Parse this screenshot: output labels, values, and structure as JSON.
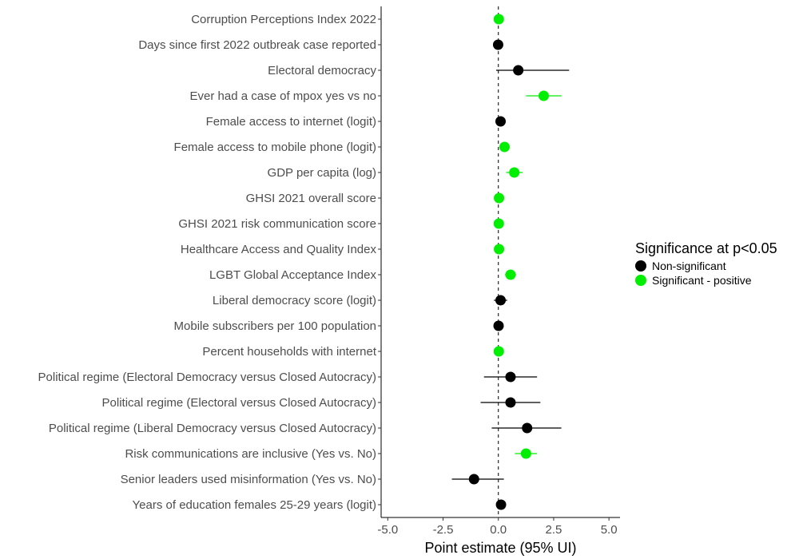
{
  "chart_data": {
    "type": "scatter",
    "subtype": "forest-plot",
    "xlabel": "Point estimate (95% UI)",
    "xlim": [
      -5.3,
      5.5
    ],
    "xticks": [
      -5.0,
      -2.5,
      0.0,
      2.5,
      5.0
    ],
    "xtick_labels": [
      "-5.0",
      "-2.5",
      "0.0",
      "2.5",
      "5.0"
    ],
    "reference_line": {
      "x": 0,
      "style": "dashed"
    },
    "grid": false,
    "legend": {
      "title": "Significance at p<0.05",
      "placement": "right",
      "entries": [
        {
          "label": "Non-significant",
          "color": "#000000"
        },
        {
          "label": "Significant - positive",
          "color": "#00ee00"
        }
      ]
    },
    "points": [
      {
        "label": "Corruption Perceptions Index 2022",
        "estimate": 0.02,
        "lower": 0.0,
        "upper": 0.04,
        "group": "Significant - positive"
      },
      {
        "label": "Days since first 2022 outbreak case reported",
        "estimate": -0.01,
        "lower": -0.03,
        "upper": 0.01,
        "group": "Non-significant"
      },
      {
        "label": "Electoral democracy",
        "estimate": 0.9,
        "lower": -0.1,
        "upper": 3.2,
        "group": "Non-significant"
      },
      {
        "label": "Ever had a case of mpox yes vs no",
        "estimate": 2.05,
        "lower": 1.25,
        "upper": 2.85,
        "group": "Significant - positive"
      },
      {
        "label": "Female access to internet (logit)",
        "estimate": 0.1,
        "lower": -0.05,
        "upper": 0.25,
        "group": "Non-significant"
      },
      {
        "label": "Female access to mobile phone (logit)",
        "estimate": 0.28,
        "lower": 0.1,
        "upper": 0.46,
        "group": "Significant - positive"
      },
      {
        "label": "GDP per capita (log)",
        "estimate": 0.72,
        "lower": 0.35,
        "upper": 1.1,
        "group": "Significant - positive"
      },
      {
        "label": "GHSI 2021 overall score",
        "estimate": 0.03,
        "lower": 0.01,
        "upper": 0.05,
        "group": "Significant - positive"
      },
      {
        "label": "GHSI 2021 risk communication score",
        "estimate": 0.02,
        "lower": 0.01,
        "upper": 0.03,
        "group": "Significant - positive"
      },
      {
        "label": "Healthcare Access and Quality Index",
        "estimate": 0.03,
        "lower": 0.01,
        "upper": 0.05,
        "group": "Significant - positive"
      },
      {
        "label": "LGBT Global Acceptance Index",
        "estimate": 0.55,
        "lower": 0.3,
        "upper": 0.8,
        "group": "Significant - positive"
      },
      {
        "label": "Liberal democracy score (logit)",
        "estimate": 0.1,
        "lower": -0.2,
        "upper": 0.4,
        "group": "Non-significant"
      },
      {
        "label": "Mobile subscribers per 100 population",
        "estimate": 0.01,
        "lower": 0.0,
        "upper": 0.02,
        "group": "Non-significant"
      },
      {
        "label": "Percent households with internet",
        "estimate": 0.02,
        "lower": 0.0,
        "upper": 0.04,
        "group": "Significant - positive"
      },
      {
        "label": "Political regime (Electoral Democracy versus Closed Autocracy)",
        "estimate": 0.55,
        "lower": -0.65,
        "upper": 1.75,
        "group": "Non-significant"
      },
      {
        "label": "Political regime (Electoral versus Closed Autocracy)",
        "estimate": 0.55,
        "lower": -0.8,
        "upper": 1.9,
        "group": "Non-significant"
      },
      {
        "label": "Political regime (Liberal Democracy versus Closed Autocracy)",
        "estimate": 1.3,
        "lower": -0.3,
        "upper": 2.85,
        "group": "Non-significant"
      },
      {
        "label": "Risk communications are inclusive (Yes vs. No)",
        "estimate": 1.25,
        "lower": 0.75,
        "upper": 1.75,
        "group": "Significant - positive"
      },
      {
        "label": "Senior leaders used misinformation (Yes vs. No)",
        "estimate": -1.1,
        "lower": -2.1,
        "upper": 0.25,
        "group": "Non-significant"
      },
      {
        "label": "Years of education females 25-29 years (logit)",
        "estimate": 0.12,
        "lower": 0.0,
        "upper": 0.24,
        "group": "Non-significant"
      }
    ]
  }
}
